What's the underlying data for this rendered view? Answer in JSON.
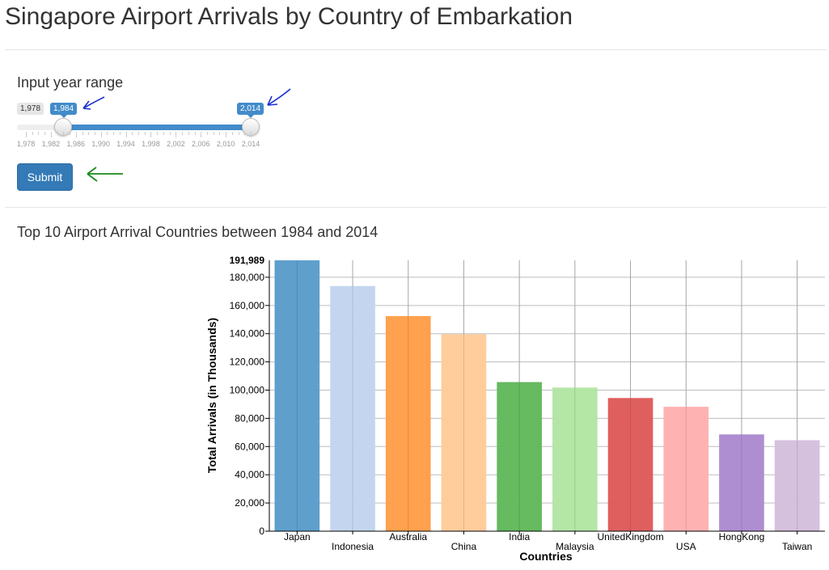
{
  "page": {
    "title": "Singapore Airport Arrivals by Country of Embarkation"
  },
  "form": {
    "label": "Input year range",
    "slider": {
      "min_label": "1,978",
      "from_label": "1,984",
      "to_label": "2,014",
      "min": 1978,
      "max": 2014,
      "from": 1984,
      "to": 2014,
      "grid_labels": [
        "1,978",
        "1,982",
        "1,986",
        "1,990",
        "1,994",
        "1,998",
        "2,002",
        "2,006",
        "2,010",
        "2,014"
      ]
    },
    "submit_label": "Submit"
  },
  "colors": {
    "primary": "#337ab7",
    "slider_blue": "#428bca"
  },
  "annotations": {
    "blue_arrow_color": "#1a2fd1",
    "green_arrow_color": "#1a8a1a"
  },
  "results": {
    "heading": "Top 10 Airport Arrival Countries between 1984 and 2014"
  },
  "chart_data": {
    "type": "bar",
    "categories": [
      "Japan",
      "Indonesia",
      "Australia",
      "China",
      "India",
      "Malaysia",
      "UnitedKingdom",
      "USA",
      "HongKong",
      "Taiwan"
    ],
    "values": [
      191989,
      173800,
      152500,
      139600,
      105700,
      101800,
      94400,
      88200,
      68600,
      64500
    ],
    "colors": [
      "#5b9dcb",
      "#c3d5ef",
      "#ff9f4a",
      "#ffcc9a",
      "#63b95c",
      "#b3e6a3",
      "#de5c5c",
      "#ffb0b0",
      "#ac8cd0",
      "#d4c0dd"
    ],
    "xlabel": "Countries",
    "ylabel": "Total Arrivals (in Thousands)",
    "ylim": [
      0,
      191989
    ],
    "yticks": [
      0,
      20000,
      40000,
      60000,
      80000,
      100000,
      120000,
      140000,
      160000,
      180000
    ],
    "max_label": "191,989",
    "grid": true
  }
}
